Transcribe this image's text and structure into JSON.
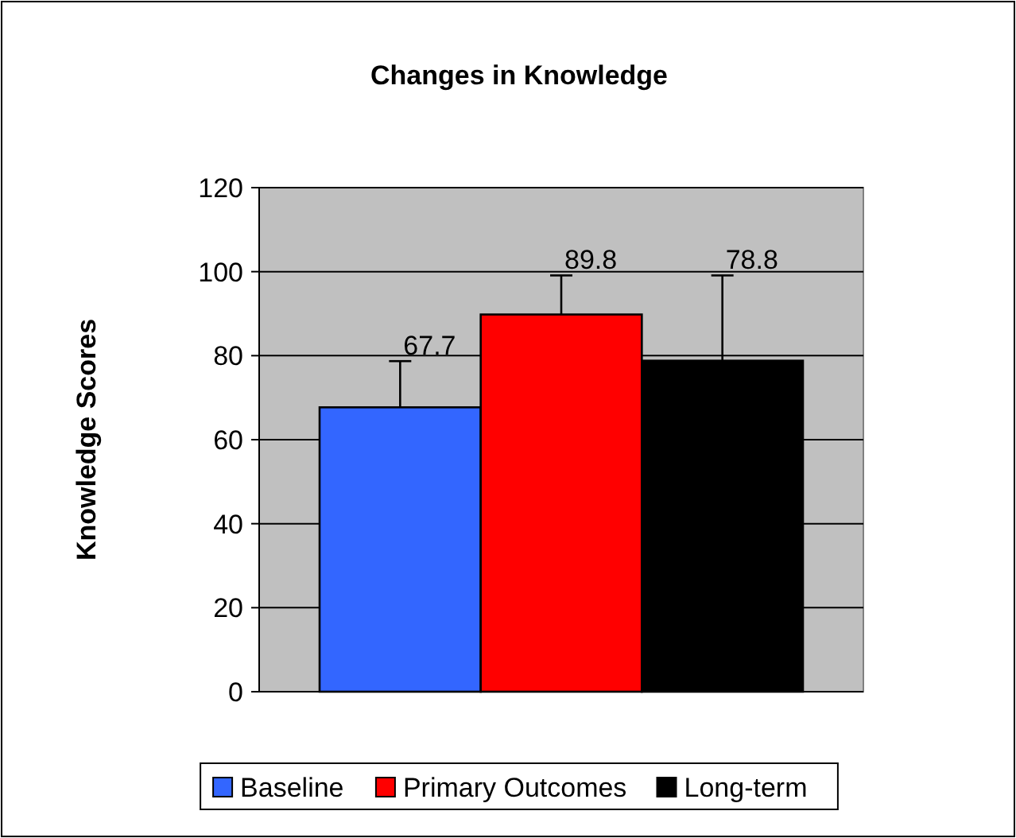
{
  "chart_data": {
    "type": "bar",
    "title": "Changes in Knowledge",
    "ylabel": "Knowledge Scores",
    "categories": [
      null
    ],
    "series": [
      {
        "name": "Baseline",
        "color": "#3366ff",
        "values": [
          67.7
        ],
        "errors": [
          [
            67.7,
            78.7
          ]
        ]
      },
      {
        "name": "Primary Outcomes",
        "color": "#ff0000",
        "values": [
          89.8
        ],
        "errors": [
          [
            89.8,
            99.1
          ]
        ]
      },
      {
        "name": "Long-term",
        "color": "#000000",
        "values": [
          78.8
        ],
        "errors": [
          [
            78.8,
            99.1
          ]
        ]
      }
    ],
    "ylim": [
      0,
      120
    ],
    "yticks": [
      0,
      20,
      40,
      60,
      80,
      100,
      120
    ],
    "grid": "y",
    "legend": "bottom",
    "data_labels": true
  }
}
